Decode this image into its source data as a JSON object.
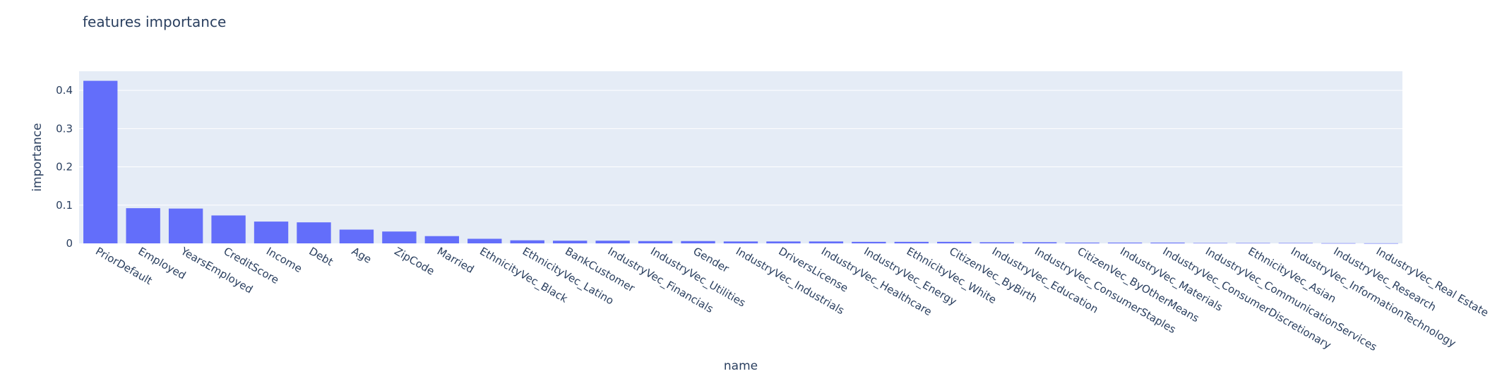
{
  "chart_data": {
    "type": "bar",
    "title": "features importance",
    "xlabel": "name",
    "ylabel": "importance",
    "ylim": [
      0,
      0.45
    ],
    "yticks": [
      0,
      0.1,
      0.2,
      0.3,
      0.4
    ],
    "ytick_labels": [
      "0",
      "0.1",
      "0.2",
      "0.3",
      "0.4"
    ],
    "grid": true,
    "colors": {
      "bar": "#636efa",
      "plot_bg": "#e5ecf6",
      "grid": "#ffffff",
      "text": "#2a3f5f"
    },
    "categories": [
      "PriorDefault",
      "Employed",
      "YearsEmployed",
      "CreditScore",
      "Income",
      "Debt",
      "Age",
      "ZipCode",
      "Married",
      "EthnicityVec_Black",
      "EthnicityVec_Latino",
      "BankCustomer",
      "IndustryVec_Financials",
      "IndustryVec_Utilities",
      "Gender",
      "IndustryVec_Industrials",
      "DriversLicense",
      "IndustryVec_Healthcare",
      "IndustryVec_Energy",
      "EthnicityVec_White",
      "CitizenVec_ByBirth",
      "IndustryVec_Education",
      "IndustryVec_ConsumerStaples",
      "CitizenVec_ByOtherMeans",
      "IndustryVec_Materials",
      "IndustryVec_ConsumerDiscretionary",
      "IndustryVec_CommunicationServices",
      "EthnicityVec_Asian",
      "IndustryVec_InformationTechnology",
      "IndustryVec_Research",
      "IndustryVec_Real Estate"
    ],
    "values": [
      0.425,
      0.092,
      0.091,
      0.073,
      0.057,
      0.055,
      0.036,
      0.031,
      0.019,
      0.012,
      0.008,
      0.007,
      0.007,
      0.006,
      0.006,
      0.005,
      0.005,
      0.005,
      0.004,
      0.004,
      0.004,
      0.003,
      0.003,
      0.002,
      0.002,
      0.002,
      0.001,
      0.001,
      0.001,
      0.0005,
      0.0003
    ]
  }
}
